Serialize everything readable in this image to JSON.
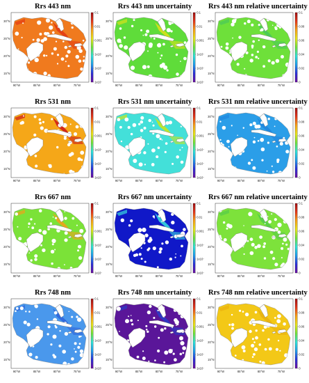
{
  "figure": {
    "panels": [
      {
        "title": "Rrs 443 nm",
        "scale": "log",
        "fill_color": "#f07a1e",
        "fill_secondary": "#e23a12"
      },
      {
        "title": "Rrs 443 nm uncertainty",
        "scale": "log",
        "fill_color": "#5fdc3a",
        "fill_secondary": "#d7e11b"
      },
      {
        "title": "Rrs 443 nm relative uncertainty",
        "scale": "linear",
        "fill_color": "#6ee03a",
        "fill_secondary": "#49c85a"
      },
      {
        "title": "Rrs 531 nm",
        "scale": "log",
        "fill_color": "#f5a718",
        "fill_secondary": "#cf1d18"
      },
      {
        "title": "Rrs 531 nm uncertainty",
        "scale": "log",
        "fill_color": "#43e0d9",
        "fill_secondary": "#c8e61e"
      },
      {
        "title": "Rrs 531 nm relative uncertainty",
        "scale": "linear",
        "fill_color": "#2b9ee8",
        "fill_secondary": "#1f86de"
      },
      {
        "title": "Rrs 667 nm",
        "scale": "log",
        "fill_color": "#7be238",
        "fill_secondary": "#f0a21b"
      },
      {
        "title": "Rrs 667 nm uncertainty",
        "scale": "log",
        "fill_color": "#1018c8",
        "fill_secondary": "#39d6dd"
      },
      {
        "title": "Rrs 667 nm relative uncertainty",
        "scale": "linear",
        "fill_color": "#7de23b",
        "fill_secondary": "#55cc4a"
      },
      {
        "title": "Rrs 748 nm",
        "scale": "log",
        "fill_color": "#4a98ec",
        "fill_secondary": "#2f66dc"
      },
      {
        "title": "Rrs 748 nm uncertainty",
        "scale": "log",
        "fill_color": "#5a1699",
        "fill_secondary": "#2a3cc7"
      },
      {
        "title": "Rrs 748 nm relative uncertainty",
        "scale": "linear",
        "fill_color": "#f3c817",
        "fill_secondary": "#e9b10f"
      }
    ],
    "colorbar_log_ticks": [
      "0.1",
      "0.01",
      "0.001",
      "1x10⁻⁴",
      "1x10⁻⁵",
      "1x10⁻⁶"
    ],
    "colorbar_linear_ticks": [
      "0.1",
      "0.08",
      "0.06",
      "0.04",
      "0.02",
      "0"
    ],
    "lat_labels": [
      "30°N",
      "25°N",
      "20°N",
      "15°N"
    ],
    "lon_labels": [
      "90°W",
      "85°W",
      "80°W",
      "75°W"
    ],
    "colormap": [
      "#6a0d9f",
      "#2b2fd6",
      "#1f9be8",
      "#2ee0d6",
      "#6fe03b",
      "#e6e21a",
      "#f5a018",
      "#e2351a",
      "#9b0f12"
    ]
  }
}
